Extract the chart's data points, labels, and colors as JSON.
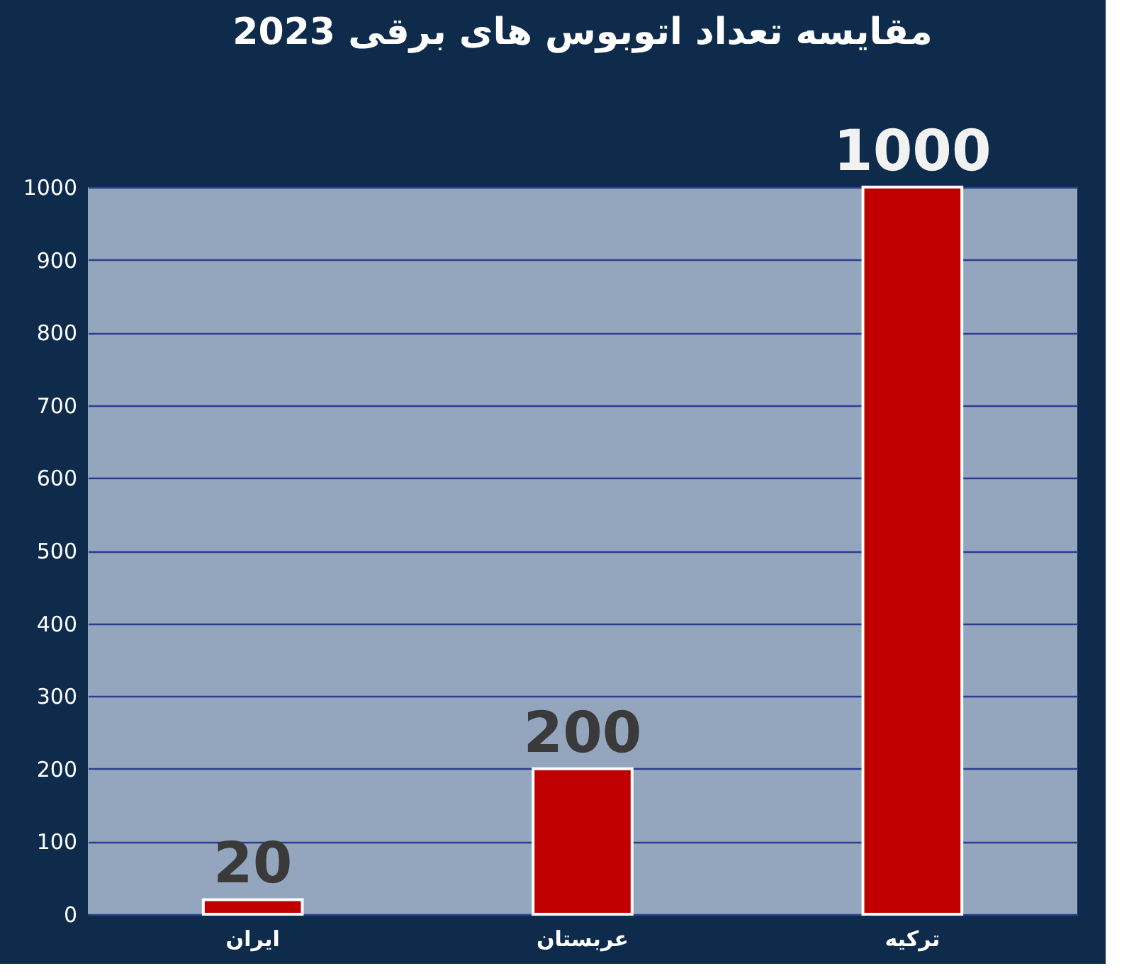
{
  "chart_data": {
    "type": "bar",
    "title": "مقایسه تعداد اتوبوس های برقی 2023",
    "categories": [
      "ایران",
      "عربستان",
      "ترکیه"
    ],
    "values": [
      20,
      200,
      1000
    ],
    "color": "#c00000",
    "ylim": [
      0,
      1000
    ],
    "yticks": [
      0,
      100,
      200,
      300,
      400,
      500,
      600,
      700,
      800,
      900,
      1000
    ],
    "grid": "y",
    "data_labels": true
  }
}
